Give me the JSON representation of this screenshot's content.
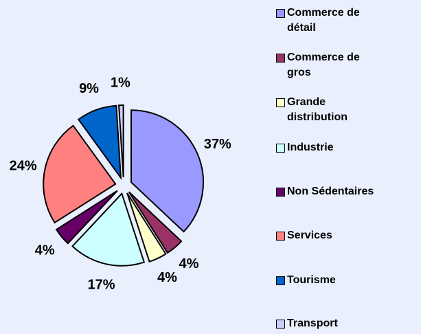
{
  "chart_data": {
    "type": "pie",
    "categories": [
      "Commerce de détail",
      "Commerce de gros",
      "Grande distribution",
      "Industrie",
      "Non Sédentaires",
      "Services",
      "Tourisme",
      "Transport"
    ],
    "values": [
      37,
      4,
      4,
      17,
      4,
      24,
      9,
      1
    ],
    "value_labels": [
      "37%",
      "4%",
      "4%",
      "17%",
      "4%",
      "24%",
      "9%",
      "1%"
    ],
    "colors": [
      "#9999ff",
      "#993366",
      "#ffffcc",
      "#ccffff",
      "#660066",
      "#ff8080",
      "#0066cc",
      "#ccccff"
    ],
    "legend": "right"
  }
}
